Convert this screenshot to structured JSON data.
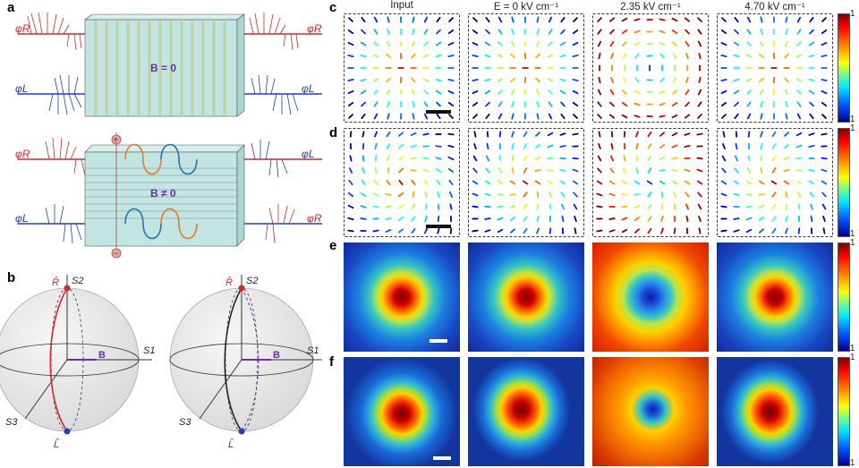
{
  "panels": {
    "a": "a",
    "b": "b",
    "c": "c",
    "d": "d",
    "e": "e",
    "f": "f"
  },
  "column_headers": [
    "Input",
    "E = 0 kV cm⁻¹",
    "2.35 kV cm⁻¹",
    "4.70 kV cm⁻¹"
  ],
  "panel_a": {
    "phi_R": "φR",
    "phi_L": "φL",
    "top_field": "B = 0",
    "bottom_field": "B ≠ 0",
    "plus": "+",
    "minus": "−"
  },
  "panel_b": {
    "R": "R̂",
    "L": "L̂",
    "S1": "S1",
    "S2": "S2",
    "S3": "S3",
    "B": "B"
  },
  "colorbar": {
    "max": "1",
    "min": "−1"
  },
  "colors": {
    "red": "#d62728",
    "blue": "#1f3fbf",
    "purple": "#6a2ca8",
    "panel_fill": "#bfe3e0"
  }
}
